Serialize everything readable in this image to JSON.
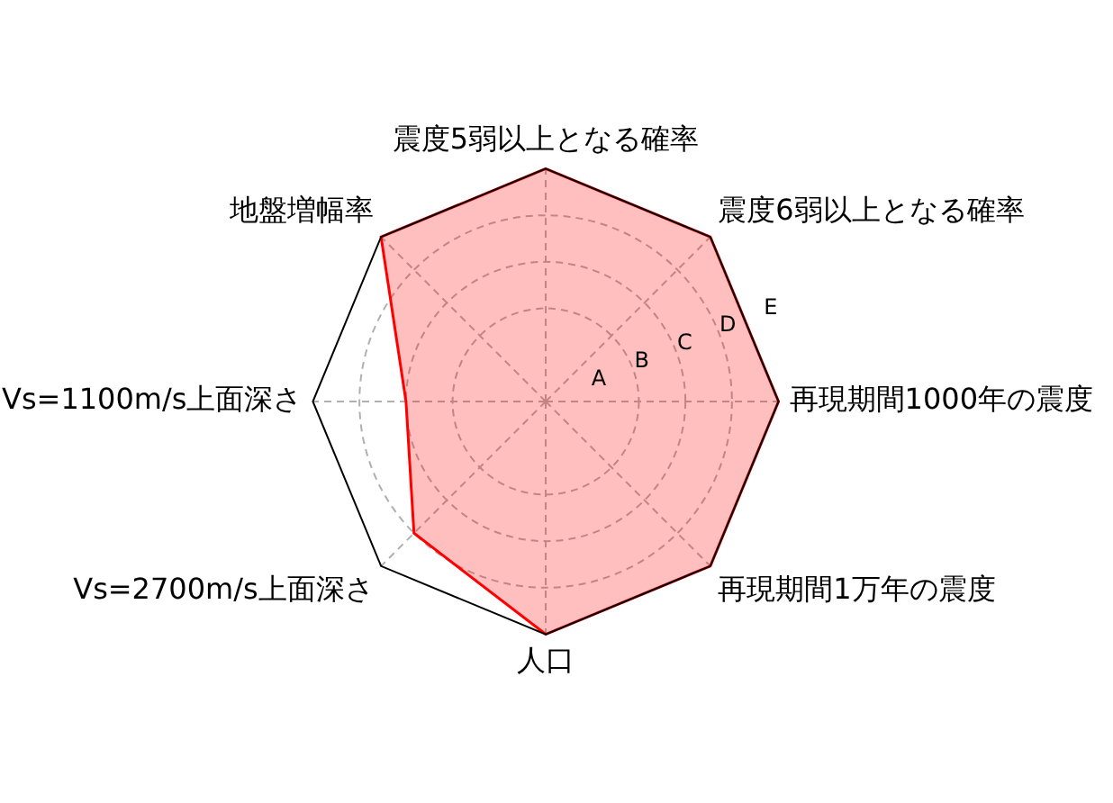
{
  "chart_data": {
    "type": "radar",
    "categories": [
      "震度5弱以上となる確率",
      "震度6弱以上となる確率",
      "再現期間1000年の震度",
      "再現期間1万年の震度",
      "人口",
      "Vs=2700m/s上面深さ",
      "Vs=1100m/s上面深さ",
      "地盤増幅率"
    ],
    "series": [
      {
        "color": "#ff0000",
        "values": [
          5,
          5,
          5,
          5,
          5,
          4,
          3,
          5
        ]
      }
    ],
    "ylim": [
      0,
      5
    ],
    "yticks": [
      {
        "value": 1,
        "label": "A"
      },
      {
        "value": 2,
        "label": "B"
      },
      {
        "value": 3,
        "label": "C"
      },
      {
        "value": 4,
        "label": "D"
      },
      {
        "value": 5,
        "label": "E"
      }
    ],
    "grid": true,
    "legend": false
  }
}
